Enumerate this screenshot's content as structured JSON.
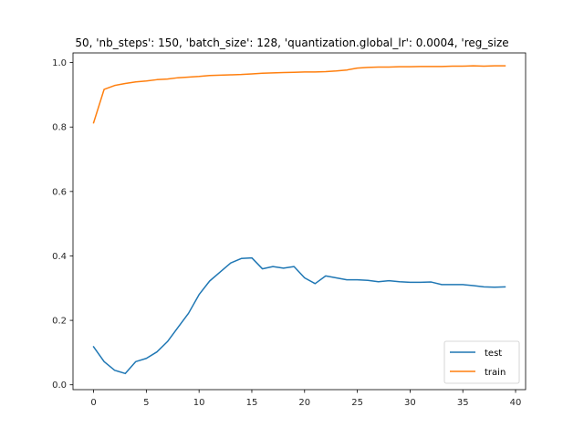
{
  "chart_data": {
    "type": "line",
    "title": "50, 'nb_steps': 150, 'batch_size': 128, 'quantization.global_lr': 0.0004, 'reg_size",
    "xlabel": "",
    "ylabel": "",
    "xlim": [
      -1.95,
      40.95
    ],
    "ylim": [
      -0.015,
      1.03
    ],
    "xticks": [
      0,
      5,
      10,
      15,
      20,
      25,
      30,
      35,
      40
    ],
    "yticks": [
      0.0,
      0.2,
      0.4,
      0.6,
      0.8,
      1.0
    ],
    "xtick_labels": [
      "0",
      "5",
      "10",
      "15",
      "20",
      "25",
      "30",
      "35",
      "40"
    ],
    "ytick_labels": [
      "0.0",
      "0.2",
      "0.4",
      "0.6",
      "0.8",
      "1.0"
    ],
    "grid": false,
    "legend_position": "lower-right",
    "x": [
      0,
      1,
      2,
      3,
      4,
      5,
      6,
      7,
      8,
      9,
      10,
      11,
      12,
      13,
      14,
      15,
      16,
      17,
      18,
      19,
      20,
      21,
      22,
      23,
      24,
      25,
      26,
      27,
      28,
      29,
      30,
      31,
      32,
      33,
      34,
      35,
      36,
      37,
      38,
      39
    ],
    "series": [
      {
        "name": "test",
        "color": "#1f77b4",
        "values": [
          0.118,
          0.072,
          0.045,
          0.035,
          0.072,
          0.082,
          0.102,
          0.134,
          0.178,
          0.222,
          0.28,
          0.322,
          0.35,
          0.378,
          0.392,
          0.394,
          0.36,
          0.367,
          0.362,
          0.367,
          0.332,
          0.314,
          0.338,
          0.332,
          0.326,
          0.326,
          0.324,
          0.32,
          0.323,
          0.32,
          0.318,
          0.318,
          0.319,
          0.311,
          0.311,
          0.311,
          0.308,
          0.304,
          0.303,
          0.304
        ]
      },
      {
        "name": "train",
        "color": "#ff7f0e",
        "values": [
          0.813,
          0.917,
          0.929,
          0.935,
          0.94,
          0.943,
          0.947,
          0.949,
          0.953,
          0.955,
          0.957,
          0.96,
          0.961,
          0.962,
          0.963,
          0.965,
          0.967,
          0.968,
          0.969,
          0.97,
          0.971,
          0.971,
          0.972,
          0.974,
          0.977,
          0.983,
          0.985,
          0.986,
          0.986,
          0.987,
          0.987,
          0.988,
          0.988,
          0.988,
          0.989,
          0.989,
          0.99,
          0.989,
          0.99,
          0.99
        ]
      }
    ]
  }
}
